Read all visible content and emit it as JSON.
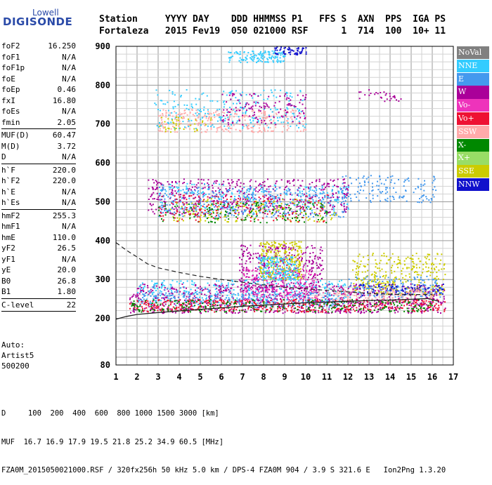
{
  "logo": {
    "line1": "Lowell",
    "line2": "DIGISONDE"
  },
  "header": {
    "line1": "Station     YYYY DAY    DDD HHMMSS P1   FFS S  AXN  PPS  IGA PS",
    "line2": "Fortaleza   2015 Fev19  050 021000 RSF      1  714  100  10+ 11"
  },
  "params": [
    {
      "label": "foF2",
      "value": "16.250"
    },
    {
      "label": "foF1",
      "value": "N/A"
    },
    {
      "label": "foF1p",
      "value": "N/A"
    },
    {
      "label": "foE",
      "value": "N/A"
    },
    {
      "label": "foEp",
      "value": "0.46"
    },
    {
      "label": "fxI",
      "value": "16.80"
    },
    {
      "label": "foEs",
      "value": "N/A"
    },
    {
      "label": "fmin",
      "value": "2.05"
    },
    {
      "sep": true
    },
    {
      "label": "MUF(D)",
      "value": "60.47"
    },
    {
      "label": "M(D)",
      "value": "3.72"
    },
    {
      "label": "D",
      "value": "N/A"
    },
    {
      "sep": true
    },
    {
      "label": "h`F",
      "value": "220.0"
    },
    {
      "label": "h`F2",
      "value": "220.0"
    },
    {
      "label": "h`E",
      "value": "N/A"
    },
    {
      "label": "h`Es",
      "value": "N/A"
    },
    {
      "sep": true
    },
    {
      "label": "hmF2",
      "value": "255.3"
    },
    {
      "label": "hmF1",
      "value": "N/A"
    },
    {
      "label": "hmE",
      "value": "110.0"
    },
    {
      "label": "yF2",
      "value": "26.5"
    },
    {
      "label": "yF1",
      "value": "N/A"
    },
    {
      "label": "yE",
      "value": "20.0"
    },
    {
      "label": "B0",
      "value": "26.8"
    },
    {
      "label": "B1",
      "value": "1.80"
    },
    {
      "sep": true
    },
    {
      "label": "C-level",
      "value": "22"
    },
    {
      "sep": true
    }
  ],
  "autoscaling": {
    "line1": "Auto:",
    "line2": "Artist5",
    "line3": "500200"
  },
  "legend": [
    {
      "label": "NoVal",
      "color": "#808080"
    },
    {
      "label": "NNE",
      "color": "#33ccff"
    },
    {
      "label": "E",
      "color": "#4499ee"
    },
    {
      "label": "W",
      "color": "#aa0099"
    },
    {
      "label": "Vo-",
      "color": "#ee33bb"
    },
    {
      "label": "Vo+",
      "color": "#ee1133"
    },
    {
      "label": "SSW",
      "color": "#ffaaaa"
    },
    {
      "label": "X-",
      "color": "#008800"
    },
    {
      "label": "X+",
      "color": "#99dd66"
    },
    {
      "label": "SSE",
      "color": "#cccc00"
    },
    {
      "label": "NNW",
      "color": "#1111cc"
    }
  ],
  "footer": {
    "line1": "D     100  200  400  600  800 1000 1500 3000 [km]",
    "line2": "MUF  16.7 16.9 17.9 19.5 21.8 25.2 34.9 60.5 [MHz]",
    "line3": "FZA0M_2015050021000.RSF / 320fx256h 50 kHz 5.0 km / DPS-4 FZA0M 904 / 3.9 S 321.6 E   Ion2Png 1.3.20"
  },
  "chart_data": {
    "type": "scatter",
    "xlim": [
      1,
      17
    ],
    "ylim": [
      80,
      900
    ],
    "xticks": [
      "1",
      "2",
      "3",
      "4",
      "5",
      "6",
      "7",
      "8",
      "9",
      "10",
      "11",
      "12",
      "13",
      "14",
      "15",
      "16",
      "17"
    ],
    "yticks": [
      "200",
      "300",
      "400",
      "500",
      "600",
      "700",
      "800",
      "900"
    ],
    "y_tick_values": [
      200,
      300,
      400,
      500,
      600,
      700,
      800,
      900
    ],
    "y_bottom_label": "80",
    "x_minor_step": 0.5,
    "y_minor_step": 20,
    "grid": true,
    "clusters": [
      {
        "c": 3,
        "x0": 1.6,
        "x1": 16.6,
        "y0": 215,
        "y1": 290,
        "n": 900
      },
      {
        "c": 1,
        "x0": 2.0,
        "x1": 12.0,
        "y0": 240,
        "y1": 300,
        "n": 320
      },
      {
        "c": 2,
        "x0": 2.0,
        "x1": 11.5,
        "y0": 230,
        "y1": 270,
        "n": 260
      },
      {
        "c": 5,
        "x0": 1.6,
        "x1": 16.6,
        "y0": 218,
        "y1": 250,
        "n": 450
      },
      {
        "c": 7,
        "x0": 1.7,
        "x1": 16.0,
        "y0": 218,
        "y1": 250,
        "n": 260
      },
      {
        "c": 3,
        "x0": 6.8,
        "x1": 10.8,
        "y0": 270,
        "y1": 390,
        "n": 360
      },
      {
        "c": 4,
        "x0": 7.0,
        "x1": 10.5,
        "y0": 250,
        "y1": 330,
        "n": 200
      },
      {
        "c": 9,
        "x0": 7.8,
        "x1": 9.8,
        "y0": 300,
        "y1": 400,
        "n": 260
      },
      {
        "c": 1,
        "x0": 7.7,
        "x1": 9.6,
        "y0": 300,
        "y1": 360,
        "n": 180
      },
      {
        "c": 9,
        "x0": 12.2,
        "x1": 16.6,
        "y0": 260,
        "y1": 370,
        "n": 320
      },
      {
        "c": 2,
        "x0": 12.0,
        "x1": 16.5,
        "y0": 255,
        "y1": 310,
        "n": 160
      },
      {
        "c": 10,
        "x0": 12.5,
        "x1": 16.5,
        "y0": 260,
        "y1": 290,
        "n": 80
      },
      {
        "c": 6,
        "x0": 10.3,
        "x1": 16.0,
        "y0": 245,
        "y1": 275,
        "n": 120
      },
      {
        "c": 3,
        "x0": 2.5,
        "x1": 12.0,
        "y0": 470,
        "y1": 560,
        "n": 520
      },
      {
        "c": 2,
        "x0": 3.0,
        "x1": 12.0,
        "y0": 462,
        "y1": 540,
        "n": 360
      },
      {
        "c": 1,
        "x0": 3.0,
        "x1": 12.0,
        "y0": 470,
        "y1": 550,
        "n": 220
      },
      {
        "c": 9,
        "x0": 3.5,
        "x1": 11.5,
        "y0": 450,
        "y1": 510,
        "n": 150
      },
      {
        "c": 7,
        "x0": 3.0,
        "x1": 11.0,
        "y0": 448,
        "y1": 500,
        "n": 150
      },
      {
        "c": 5,
        "x0": 3.0,
        "x1": 11.0,
        "y0": 450,
        "y1": 520,
        "n": 150
      },
      {
        "c": 2,
        "x0": 11.5,
        "x1": 16.2,
        "y0": 500,
        "y1": 570,
        "n": 140
      },
      {
        "c": 6,
        "x0": 3.0,
        "x1": 10.0,
        "y0": 680,
        "y1": 740,
        "n": 300
      },
      {
        "c": 1,
        "x0": 2.8,
        "x1": 10.0,
        "y0": 690,
        "y1": 790,
        "n": 230
      },
      {
        "c": 3,
        "x0": 6.0,
        "x1": 10.0,
        "y0": 700,
        "y1": 780,
        "n": 130
      },
      {
        "c": 9,
        "x0": 3.0,
        "x1": 5.5,
        "y0": 680,
        "y1": 720,
        "n": 40
      },
      {
        "c": 1,
        "x0": 6.3,
        "x1": 9.0,
        "y0": 860,
        "y1": 890,
        "n": 130
      },
      {
        "c": 10,
        "x0": 8.5,
        "x1": 10.0,
        "y0": 880,
        "y1": 900,
        "n": 60
      },
      {
        "c": 3,
        "x0": 12.5,
        "x1": 14.5,
        "y0": 760,
        "y1": 790,
        "n": 30
      }
    ],
    "dashed_curve": [
      [
        1.0,
        395
      ],
      [
        1.5,
        375
      ],
      [
        2.0,
        358
      ],
      [
        2.5,
        340
      ],
      [
        3.0,
        330
      ],
      [
        4.0,
        318
      ],
      [
        5.0,
        308
      ],
      [
        6.0,
        300
      ],
      [
        7.0,
        293
      ],
      [
        8.0,
        286
      ],
      [
        9.0,
        280
      ],
      [
        10.0,
        276
      ],
      [
        11.0,
        272
      ],
      [
        12.0,
        268
      ],
      [
        13.0,
        264
      ],
      [
        14.0,
        262
      ],
      [
        15.0,
        261
      ],
      [
        16.0,
        262
      ]
    ],
    "solid_curve": [
      [
        1.0,
        198
      ],
      [
        1.5,
        205
      ],
      [
        2.0,
        210
      ],
      [
        3.0,
        215
      ],
      [
        4.0,
        219
      ],
      [
        5.0,
        223
      ],
      [
        6.0,
        227
      ],
      [
        7.0,
        231
      ],
      [
        8.0,
        234
      ],
      [
        9.0,
        237
      ],
      [
        10.0,
        240
      ],
      [
        11.0,
        242
      ],
      [
        12.0,
        244
      ],
      [
        13.0,
        246
      ],
      [
        14.0,
        247
      ],
      [
        15.0,
        249
      ],
      [
        15.8,
        251
      ],
      [
        16.3,
        244
      ]
    ]
  }
}
